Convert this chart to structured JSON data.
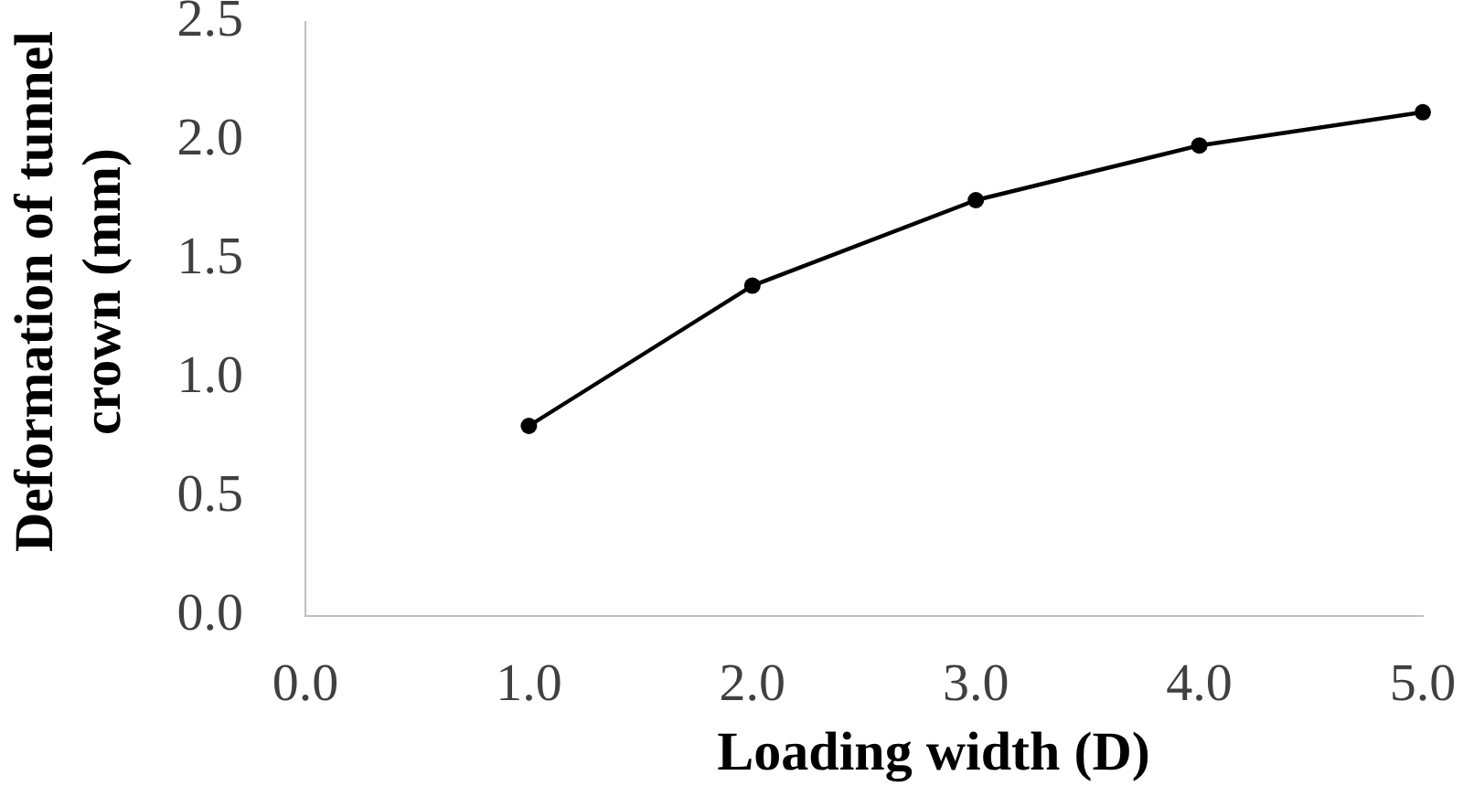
{
  "chart_data": {
    "type": "line",
    "xlabel": "Loading width (D)",
    "ylabel": "Deformation of tunnel crown (mm)",
    "x": [
      1.0,
      2.0,
      3.0,
      4.0,
      5.0
    ],
    "series": [
      {
        "color": "#000000",
        "values": [
          0.8,
          1.39,
          1.75,
          1.98,
          2.12
        ]
      }
    ],
    "xlim": [
      0,
      5
    ],
    "xticks": [
      {
        "value": 0,
        "label": "0.0"
      },
      {
        "value": 1,
        "label": "1.0"
      },
      {
        "value": 2,
        "label": "2.0"
      },
      {
        "value": 3,
        "label": "3.0"
      },
      {
        "value": 4,
        "label": "4.0"
      },
      {
        "value": 5,
        "label": "5.0"
      }
    ],
    "ylim": [
      0,
      2.5
    ],
    "yticks": [
      {
        "value": 0,
        "label": "0.0"
      },
      {
        "value": 0.5,
        "label": "0.5"
      },
      {
        "value": 1,
        "label": "1.0"
      },
      {
        "value": 1.5,
        "label": "1.5"
      },
      {
        "value": 2,
        "label": "2.0"
      },
      {
        "value": 2.5,
        "label": "2.5"
      }
    ],
    "grid": false,
    "legend": false,
    "marker": "circle",
    "line_style": "solid"
  }
}
